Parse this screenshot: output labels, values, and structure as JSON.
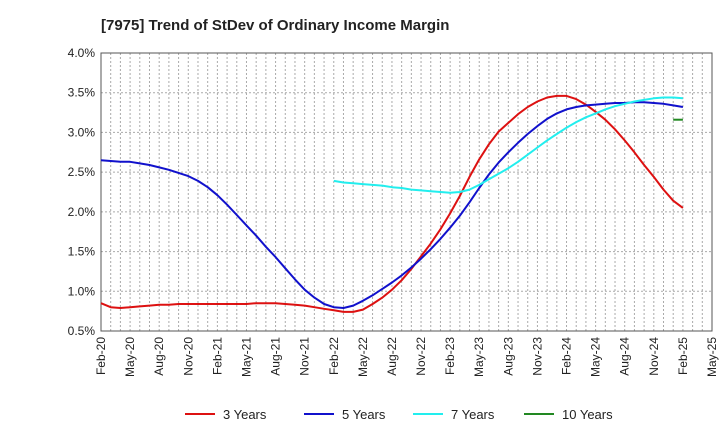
{
  "chart_data": {
    "type": "line",
    "title": "[7975]  Trend of StDev of Ordinary Income Margin",
    "xlabel": "",
    "ylabel": "",
    "x_ticks": [
      "Feb-20",
      "May-20",
      "Aug-20",
      "Nov-20",
      "Feb-21",
      "May-21",
      "Aug-21",
      "Nov-21",
      "Feb-22",
      "May-22",
      "Aug-22",
      "Nov-22",
      "Feb-23",
      "May-23",
      "Aug-23",
      "Nov-23",
      "Feb-24",
      "May-24",
      "Aug-24",
      "Nov-24",
      "Feb-25",
      "May-25"
    ],
    "y_ticks": [
      "0.5%",
      "1.0%",
      "1.5%",
      "2.0%",
      "2.5%",
      "3.0%",
      "3.5%",
      "4.0%"
    ],
    "ylim": [
      0.5,
      4.0
    ],
    "grid": true,
    "legend_position": "bottom",
    "colors": {
      "grid": "#aaaaaa",
      "axis": "#555555"
    },
    "series": [
      {
        "name": "3 Years",
        "color": "#dd1111",
        "x": [
          "Feb-20",
          "Mar-20",
          "Apr-20",
          "May-20",
          "Jun-20",
          "Jul-20",
          "Aug-20",
          "Sep-20",
          "Oct-20",
          "Nov-20",
          "Dec-20",
          "Jan-21",
          "Feb-21",
          "Mar-21",
          "Apr-21",
          "May-21",
          "Jun-21",
          "Jul-21",
          "Aug-21",
          "Sep-21",
          "Oct-21",
          "Nov-21",
          "Dec-21",
          "Jan-22",
          "Feb-22",
          "Mar-22",
          "Apr-22",
          "May-22",
          "Jun-22",
          "Jul-22",
          "Aug-22",
          "Sep-22",
          "Oct-22",
          "Nov-22",
          "Dec-22",
          "Jan-23",
          "Feb-23",
          "Mar-23",
          "Apr-23",
          "May-23",
          "Jun-23",
          "Jul-23",
          "Aug-23",
          "Sep-23",
          "Oct-23",
          "Nov-23",
          "Dec-23",
          "Jan-24",
          "Feb-24",
          "Mar-24",
          "Apr-24",
          "May-24",
          "Jun-24",
          "Jul-24",
          "Aug-24",
          "Sep-24",
          "Oct-24",
          "Nov-24",
          "Dec-24",
          "Jan-25",
          "Feb-25"
        ],
        "values": [
          0.85,
          0.8,
          0.79,
          0.8,
          0.81,
          0.82,
          0.83,
          0.83,
          0.84,
          0.84,
          0.84,
          0.84,
          0.84,
          0.84,
          0.84,
          0.84,
          0.85,
          0.85,
          0.85,
          0.84,
          0.83,
          0.82,
          0.8,
          0.78,
          0.76,
          0.74,
          0.74,
          0.77,
          0.84,
          0.92,
          1.02,
          1.14,
          1.28,
          1.44,
          1.6,
          1.78,
          1.98,
          2.2,
          2.44,
          2.66,
          2.85,
          3.01,
          3.12,
          3.23,
          3.32,
          3.39,
          3.44,
          3.46,
          3.46,
          3.42,
          3.35,
          3.26,
          3.16,
          3.04,
          2.9,
          2.75,
          2.59,
          2.44,
          2.28,
          2.14,
          2.05
        ]
      },
      {
        "name": "5 Years",
        "color": "#1111cc",
        "x": [
          "Feb-20",
          "Mar-20",
          "Apr-20",
          "May-20",
          "Jun-20",
          "Jul-20",
          "Aug-20",
          "Sep-20",
          "Oct-20",
          "Nov-20",
          "Dec-20",
          "Jan-21",
          "Feb-21",
          "Mar-21",
          "Apr-21",
          "May-21",
          "Jun-21",
          "Jul-21",
          "Aug-21",
          "Sep-21",
          "Oct-21",
          "Nov-21",
          "Dec-21",
          "Jan-22",
          "Feb-22",
          "Mar-22",
          "Apr-22",
          "May-22",
          "Jun-22",
          "Jul-22",
          "Aug-22",
          "Sep-22",
          "Oct-22",
          "Nov-22",
          "Dec-22",
          "Jan-23",
          "Feb-23",
          "Mar-23",
          "Apr-23",
          "May-23",
          "Jun-23",
          "Jul-23",
          "Aug-23",
          "Sep-23",
          "Oct-23",
          "Nov-23",
          "Dec-23",
          "Jan-24",
          "Feb-24",
          "Mar-24",
          "Apr-24",
          "May-24",
          "Jun-24",
          "Jul-24",
          "Aug-24",
          "Sep-24",
          "Oct-24",
          "Nov-24",
          "Dec-24",
          "Jan-25",
          "Feb-25"
        ],
        "values": [
          2.65,
          2.64,
          2.63,
          2.63,
          2.61,
          2.59,
          2.56,
          2.53,
          2.49,
          2.45,
          2.39,
          2.31,
          2.21,
          2.09,
          1.96,
          1.83,
          1.7,
          1.56,
          1.43,
          1.29,
          1.15,
          1.02,
          0.92,
          0.84,
          0.8,
          0.79,
          0.82,
          0.88,
          0.95,
          1.03,
          1.11,
          1.2,
          1.3,
          1.41,
          1.53,
          1.66,
          1.8,
          1.95,
          2.12,
          2.3,
          2.47,
          2.62,
          2.75,
          2.87,
          2.98,
          3.08,
          3.17,
          3.24,
          3.29,
          3.32,
          3.34,
          3.35,
          3.36,
          3.37,
          3.37,
          3.38,
          3.38,
          3.37,
          3.36,
          3.34,
          3.32
        ]
      },
      {
        "name": "7 Years",
        "color": "#22eeee",
        "x": [
          "Feb-22",
          "Mar-22",
          "Apr-22",
          "May-22",
          "Jun-22",
          "Jul-22",
          "Aug-22",
          "Sep-22",
          "Oct-22",
          "Nov-22",
          "Dec-22",
          "Jan-23",
          "Feb-23",
          "Mar-23",
          "Apr-23",
          "May-23",
          "Jun-23",
          "Jul-23",
          "Aug-23",
          "Sep-23",
          "Oct-23",
          "Nov-23",
          "Dec-23",
          "Jan-24",
          "Feb-24",
          "Mar-24",
          "Apr-24",
          "May-24",
          "Jun-24",
          "Jul-24",
          "Aug-24",
          "Sep-24",
          "Oct-24",
          "Nov-24",
          "Dec-24",
          "Jan-25",
          "Feb-25"
        ],
        "values": [
          2.39,
          2.37,
          2.36,
          2.35,
          2.34,
          2.33,
          2.31,
          2.3,
          2.28,
          2.27,
          2.26,
          2.25,
          2.24,
          2.25,
          2.28,
          2.34,
          2.41,
          2.48,
          2.55,
          2.63,
          2.72,
          2.81,
          2.9,
          2.98,
          3.06,
          3.13,
          3.19,
          3.24,
          3.29,
          3.33,
          3.36,
          3.39,
          3.41,
          3.43,
          3.44,
          3.44,
          3.43
        ]
      },
      {
        "name": "10 Years",
        "color": "#228822",
        "x": [
          "Jan-25",
          "Feb-25"
        ],
        "values": [
          3.16,
          3.16
        ]
      }
    ]
  }
}
